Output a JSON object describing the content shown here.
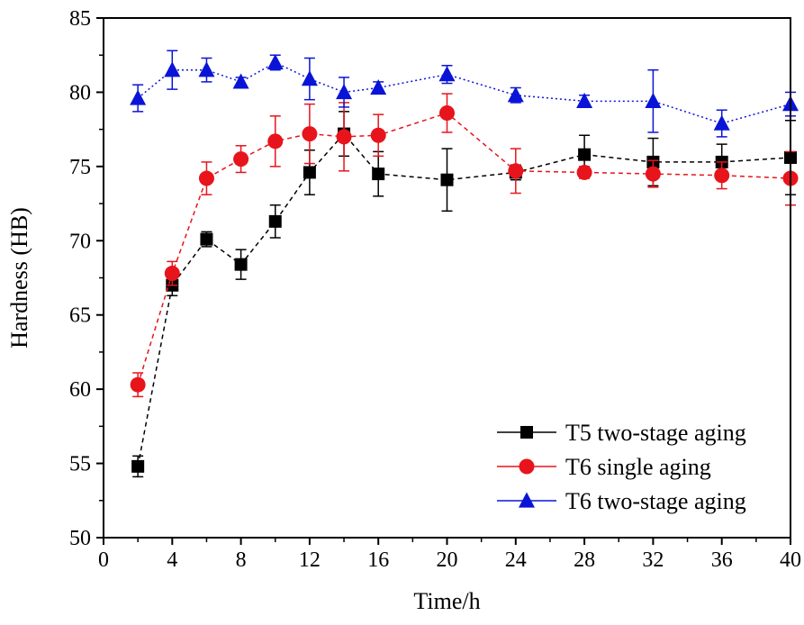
{
  "chart_data": {
    "type": "line",
    "title": "",
    "xlabel": "Time/h",
    "ylabel": "Hardness (HB)",
    "xlim": [
      0,
      40
    ],
    "ylim": [
      50,
      85
    ],
    "xticks": [
      0,
      4,
      8,
      12,
      16,
      20,
      24,
      28,
      32,
      36,
      40
    ],
    "yticks": [
      50,
      55,
      60,
      65,
      70,
      75,
      80,
      85
    ],
    "grid": false,
    "legend_position": "bottom-right",
    "series": [
      {
        "name": "T5 two-stage aging",
        "color": "#000000",
        "marker": "square",
        "line_style": "dashed",
        "x": [
          2,
          4,
          6,
          8,
          10,
          12,
          14,
          16,
          20,
          24,
          28,
          32,
          36,
          40
        ],
        "y": [
          54.8,
          67.0,
          70.1,
          68.4,
          71.3,
          74.6,
          77.2,
          74.5,
          74.1,
          74.6,
          75.8,
          75.3,
          75.3,
          75.6
        ],
        "err": [
          0.7,
          0.7,
          0.5,
          1.0,
          1.1,
          1.5,
          1.5,
          1.5,
          2.1,
          0.5,
          1.3,
          1.6,
          1.2,
          2.5
        ]
      },
      {
        "name": "T6 single aging",
        "color": "#e8141b",
        "marker": "circle",
        "line_style": "dashed",
        "x": [
          2,
          4,
          6,
          8,
          10,
          12,
          14,
          16,
          20,
          24,
          28,
          32,
          36,
          40
        ],
        "y": [
          60.3,
          67.8,
          74.2,
          75.5,
          76.7,
          77.2,
          77.0,
          77.1,
          78.6,
          74.7,
          74.6,
          74.5,
          74.4,
          74.2
        ],
        "err": [
          0.8,
          0.8,
          1.1,
          0.9,
          1.7,
          2.0,
          2.3,
          1.4,
          1.3,
          1.5,
          0.4,
          0.9,
          0.9,
          1.8
        ]
      },
      {
        "name": "T6 two-stage aging",
        "color": "#0a14d6",
        "marker": "triangle",
        "line_style": "dotted",
        "x": [
          2,
          4,
          6,
          8,
          10,
          12,
          14,
          16,
          20,
          24,
          28,
          32,
          36,
          40
        ],
        "y": [
          79.6,
          81.5,
          81.5,
          80.7,
          82.0,
          80.9,
          80.0,
          80.3,
          81.2,
          79.8,
          79.4,
          79.4,
          77.9,
          79.2
        ],
        "err": [
          0.9,
          1.3,
          0.8,
          0.3,
          0.5,
          1.4,
          1.0,
          0.4,
          0.6,
          0.5,
          0.4,
          2.1,
          0.9,
          0.8
        ]
      }
    ]
  }
}
